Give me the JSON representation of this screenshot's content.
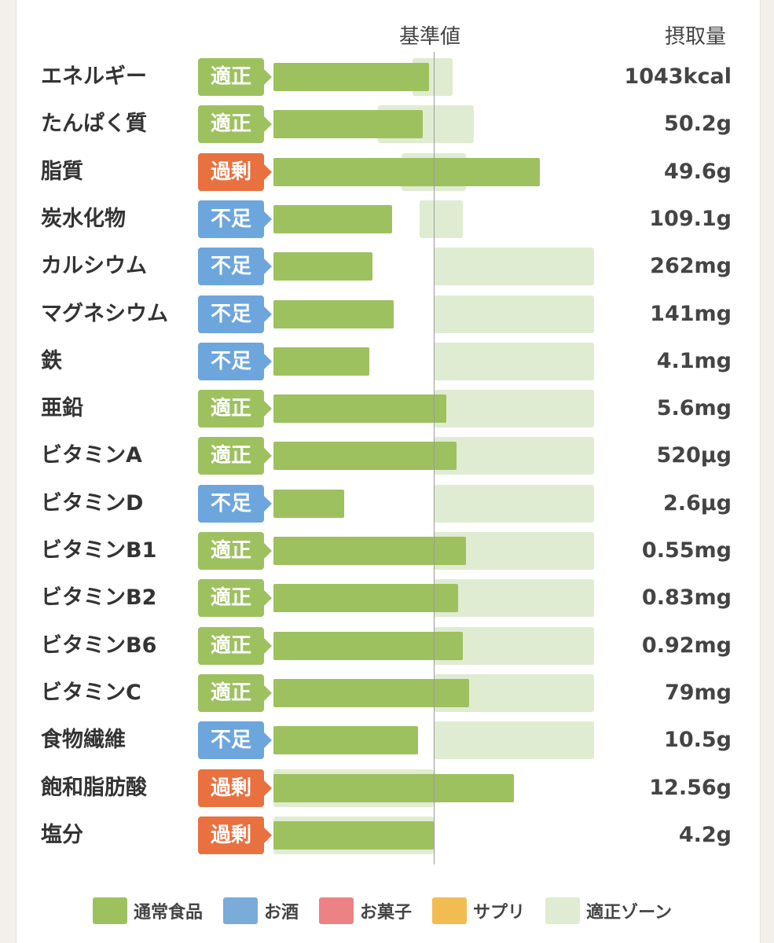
{
  "header": {
    "reference_label": "基準値",
    "intake_label": "摂取量"
  },
  "status_colors": {
    "適正": "#9dc15f",
    "過剰": "#e8713f",
    "不足": "#6ca6dd"
  },
  "chart_data": {
    "type": "bar",
    "reference_value": 100,
    "unit_note": "bar length relative to 基準値 (reference = 100)",
    "rows": [
      {
        "label": "エネルギー",
        "status": "適正",
        "value_text": "1043kcal",
        "ratio": 97,
        "zone": [
          -13,
          12
        ]
      },
      {
        "label": "たんぱく質",
        "status": "適正",
        "value_text": "50.2g",
        "ratio": 93,
        "zone": [
          -35,
          25
        ]
      },
      {
        "label": "脂質",
        "status": "過剰",
        "value_text": "49.6g",
        "ratio": 166,
        "zone": [
          -20,
          20
        ]
      },
      {
        "label": "炭水化物",
        "status": "不足",
        "value_text": "109.1g",
        "ratio": 74,
        "zone": [
          -9,
          18
        ]
      },
      {
        "label": "カルシウム",
        "status": "不足",
        "value_text": "262mg",
        "ratio": 62,
        "zone": [
          0,
          100
        ]
      },
      {
        "label": "マグネシウム",
        "status": "不足",
        "value_text": "141mg",
        "ratio": 75,
        "zone": [
          0,
          100
        ]
      },
      {
        "label": "鉄",
        "status": "不足",
        "value_text": "4.1mg",
        "ratio": 60,
        "zone": [
          0,
          100
        ]
      },
      {
        "label": "亜鉛",
        "status": "適正",
        "value_text": "5.6mg",
        "ratio": 108,
        "zone": [
          0,
          100
        ]
      },
      {
        "label": "ビタミンA",
        "status": "適正",
        "value_text": "520µg",
        "ratio": 114,
        "zone": [
          0,
          100
        ]
      },
      {
        "label": "ビタミンD",
        "status": "不足",
        "value_text": "2.6µg",
        "ratio": 44,
        "zone": [
          0,
          100
        ]
      },
      {
        "label": "ビタミンB1",
        "status": "適正",
        "value_text": "0.55mg",
        "ratio": 120,
        "zone": [
          0,
          100
        ]
      },
      {
        "label": "ビタミンB2",
        "status": "適正",
        "value_text": "0.83mg",
        "ratio": 115,
        "zone": [
          0,
          100
        ]
      },
      {
        "label": "ビタミンB6",
        "status": "適正",
        "value_text": "0.92mg",
        "ratio": 118,
        "zone": [
          0,
          100
        ]
      },
      {
        "label": "ビタミンC",
        "status": "適正",
        "value_text": "79mg",
        "ratio": 122,
        "zone": [
          0,
          100
        ]
      },
      {
        "label": "食物繊維",
        "status": "不足",
        "value_text": "10.5g",
        "ratio": 90,
        "zone": [
          0,
          100
        ]
      },
      {
        "label": "飽和脂肪酸",
        "status": "過剰",
        "value_text": "12.56g",
        "ratio": 150,
        "zone": [
          -100,
          0
        ]
      },
      {
        "label": "塩分",
        "status": "過剰",
        "value_text": "4.2g",
        "ratio": 100,
        "zone": [
          -100,
          0
        ]
      }
    ]
  },
  "legend": [
    {
      "label": "通常食品",
      "color": "#9dc15f"
    },
    {
      "label": "お酒",
      "color": "#7aabd9"
    },
    {
      "label": "お菓子",
      "color": "#ec8283"
    },
    {
      "label": "サプリ",
      "color": "#f1bd52"
    },
    {
      "label": "適正ゾーン",
      "color": "#dfecd1"
    }
  ]
}
